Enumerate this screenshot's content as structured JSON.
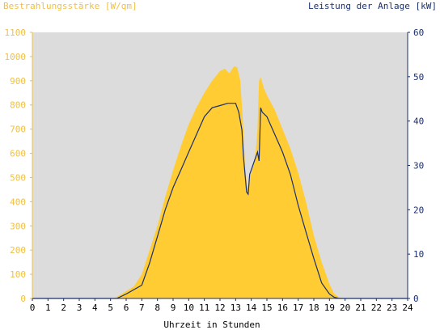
{
  "chart_data": {
    "type": "area",
    "title_left": "Bestrahlungsstärke [W/qm]",
    "title_right": "Leistung der Anlage [kW]",
    "xlabel": "Uhrzeit in Stunden",
    "x_range": [
      0,
      24
    ],
    "x_ticks": [
      "0",
      "1",
      "2",
      "3",
      "4",
      "5",
      "6",
      "7",
      "8",
      "9",
      "10",
      "11",
      "12",
      "13",
      "14",
      "15",
      "16",
      "17",
      "18",
      "19",
      "20",
      "21",
      "22",
      "23",
      "24"
    ],
    "y_left_range": [
      0,
      1100
    ],
    "y_left_ticks": [
      "0",
      "100",
      "200",
      "300",
      "400",
      "500",
      "600",
      "700",
      "800",
      "900",
      "1000",
      "1100"
    ],
    "y_right_range": [
      0,
      60
    ],
    "y_right_ticks": [
      "0",
      "10",
      "20",
      "30",
      "40",
      "50",
      "60"
    ],
    "grid": false,
    "colors": {
      "plot_bg": "#dcdcdc",
      "irradiance_fill": "#ffcc33",
      "power_line": "#1a2f6e",
      "left_axis": "#f0c040",
      "right_axis": "#1a2f6e",
      "x_axis": "#1a2f6e"
    },
    "series": [
      {
        "axis": "left",
        "style": "area",
        "x": [
          0,
          5.2,
          5.5,
          6,
          6.5,
          7,
          7.5,
          8,
          8.5,
          9,
          9.5,
          10,
          10.5,
          11,
          11.5,
          12,
          12.3,
          12.6,
          12.9,
          13.1,
          13.3,
          13.5,
          13.6,
          13.7,
          13.8,
          13.9,
          14,
          14.1,
          14.2,
          14.3,
          14.4,
          14.5,
          14.6,
          14.8,
          15,
          15.5,
          16,
          16.5,
          17,
          17.5,
          18,
          18.5,
          19,
          19.3,
          19.6,
          20,
          24
        ],
        "values": [
          0,
          0,
          10,
          30,
          50,
          100,
          200,
          300,
          420,
          530,
          630,
          720,
          790,
          850,
          900,
          940,
          950,
          930,
          960,
          955,
          900,
          700,
          550,
          480,
          450,
          500,
          520,
          540,
          560,
          620,
          700,
          900,
          915,
          870,
          840,
          780,
          700,
          620,
          520,
          400,
          260,
          150,
          60,
          20,
          5,
          0,
          0
        ]
      },
      {
        "axis": "right",
        "style": "line",
        "x": [
          0,
          5.4,
          6,
          6.5,
          7,
          7.5,
          8,
          8.5,
          9,
          9.5,
          10,
          10.5,
          11,
          11.5,
          12,
          12.5,
          13,
          13.2,
          13.4,
          13.5,
          13.7,
          13.8,
          13.9,
          14,
          14.2,
          14.4,
          14.5,
          14.6,
          14.7,
          15,
          15.5,
          16,
          16.5,
          17,
          17.5,
          18,
          18.5,
          19,
          19.3,
          19.6,
          20,
          24
        ],
        "values": [
          0,
          0,
          1,
          2,
          3,
          8,
          14,
          20,
          25,
          29,
          33,
          37,
          41,
          43,
          43.5,
          44,
          44,
          42,
          38,
          32,
          24,
          23.5,
          28,
          29,
          31,
          33,
          31,
          43,
          42,
          41,
          37,
          33,
          28,
          21,
          15,
          9,
          3.5,
          1,
          0.3,
          0,
          0,
          0
        ]
      }
    ]
  }
}
